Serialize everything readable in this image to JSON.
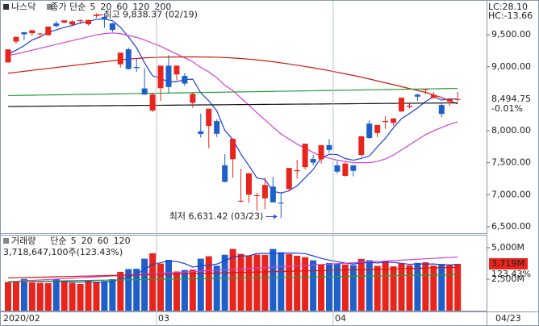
{
  "chart_data": [
    {
      "type": "candlestick",
      "title": "나스닥",
      "ma_label": "종가 단순",
      "up_color": "#e8241c",
      "down_color": "#1f5fc9",
      "open": [
        9070,
        9395,
        9541,
        9526,
        9518,
        9495,
        9680,
        9692,
        9661,
        9715,
        9666,
        9795,
        9781,
        9680,
        9039,
        9274,
        8997,
        8662,
        8316,
        8667,
        9018,
        8881,
        8858,
        8437,
        7991,
        8075,
        8151,
        7460,
        7555,
        6904,
        7000,
        6988,
        6943,
        7126,
        6875,
        7089,
        7367,
        7431,
        7558,
        7553,
        7775,
        7460,
        7294,
        7459,
        7621,
        8112,
        7964,
        8136,
        8123,
        8302,
        8374,
        8566,
        8650,
        8514,
        8402,
        8456,
        8485
      ],
      "high": [
        9275,
        9479,
        9550,
        9574,
        9535,
        9630,
        9720,
        9727,
        9728,
        9735,
        9736,
        9838.37,
        9838,
        9690,
        9219,
        9302,
        9134,
        8978,
        8596,
        9018,
        9187,
        9019,
        8902,
        8599,
        8269,
        8344,
        8180,
        7633,
        7875,
        7406,
        7339,
        7031,
        7267,
        7280,
        7041,
        7418,
        7547,
        7799,
        7623,
        7776,
        7871,
        7524,
        7516,
        7465,
        7916,
        8163,
        8091,
        8229,
        8197,
        8521,
        8442,
        8580,
        8653,
        8604,
        8423,
        8502,
        8607
      ],
      "low": [
        9060,
        9362,
        9418,
        9484,
        9455,
        9491,
        9614,
        9680,
        9635,
        9671,
        9645,
        9766,
        9608,
        9543,
        8990,
        8957,
        8922,
        8564,
        8290,
        8467,
        8583,
        8788,
        8703,
        8357,
        7896,
        7726,
        7903,
        7194,
        7264,
        6880,
        6870,
        6752,
        6771,
        6879,
        6631.42,
        7054,
        7250,
        7392,
        7456,
        7484,
        7654,
        7332,
        7280,
        7286,
        7597,
        7871,
        7897,
        8027,
        8077,
        8293,
        8347,
        8469,
        8574,
        8501,
        8209,
        8387,
        8460
      ],
      "close": [
        9273,
        9467,
        9509,
        9572,
        9520,
        9629,
        9638,
        9726,
        9711,
        9731,
        9732,
        9817,
        9750,
        9577,
        9221,
        8966,
        8980,
        8566,
        8567,
        9018,
        8684,
        9019,
        8738,
        8576,
        7950,
        8344,
        7952,
        7201,
        7875,
        6905,
        7335,
        6990,
        7151,
        6880,
        6861,
        7418,
        7384,
        7798,
        7502,
        7774,
        7700,
        7360,
        7487,
        7373,
        7913,
        7887,
        8090,
        8153,
        8192,
        8516,
        8393,
        8533,
        8650,
        8561,
        8263,
        8495,
        8494.75
      ],
      "series": [
        {
          "name": "5",
          "color": "#1c3fd8",
          "values": [
            9200,
            9260,
            9330,
            9420,
            9468,
            9540,
            9578,
            9617,
            9647,
            9687,
            9708,
            9743,
            9748,
            9721,
            9619,
            9466,
            9299,
            9062,
            8860,
            8819,
            8763,
            8767,
            8801,
            8807,
            8593,
            8469,
            8312,
            8005,
            7864,
            7635,
            7454,
            7261,
            7239,
            7052,
            7025,
            7060,
            7139,
            7264,
            7393,
            7575,
            7632,
            7627,
            7565,
            7539,
            7567,
            7604,
            7750,
            7883,
            8047,
            8188,
            8269,
            8357,
            8457,
            8531,
            8480,
            8500,
            8493
          ]
        },
        {
          "name": "20",
          "color": "#d23fd6",
          "values": [
            9180,
            9200,
            9230,
            9260,
            9290,
            9320,
            9350,
            9380,
            9410,
            9440,
            9470,
            9500,
            9520,
            9530,
            9520,
            9490,
            9460,
            9420,
            9370,
            9320,
            9260,
            9200,
            9140,
            9080,
            8990,
            8920,
            8830,
            8710,
            8630,
            8510,
            8400,
            8280,
            8170,
            8060,
            7950,
            7870,
            7790,
            7730,
            7660,
            7600,
            7570,
            7540,
            7520,
            7500,
            7500,
            7500,
            7520,
            7560,
            7620,
            7700,
            7780,
            7860,
            7940,
            8000,
            8050,
            8100,
            8140
          ]
        },
        {
          "name": "60",
          "color": "#d0190f",
          "values": [
            8900,
            8915,
            8930,
            8945,
            8960,
            8975,
            8990,
            9005,
            9020,
            9035,
            9050,
            9065,
            9080,
            9095,
            9110,
            9120,
            9130,
            9140,
            9145,
            9150,
            9152,
            9154,
            9155,
            9155,
            9154,
            9152,
            9150,
            9145,
            9138,
            9130,
            9120,
            9108,
            9095,
            9080,
            9062,
            9044,
            9025,
            9005,
            8985,
            8963,
            8940,
            8915,
            8890,
            8865,
            8838,
            8810,
            8780,
            8750,
            8720,
            8690,
            8660,
            8630,
            8600,
            8560,
            8520,
            8470,
            8420
          ]
        },
        {
          "name": "120",
          "color": "#2a9a3a",
          "values": [
            8550,
            8552,
            8554,
            8556,
            8558,
            8560,
            8562,
            8564,
            8566,
            8568,
            8570,
            8572,
            8574,
            8576,
            8578,
            8580,
            8582,
            8584,
            8586,
            8588,
            8590,
            8592,
            8594,
            8596,
            8598,
            8600,
            8602,
            8604,
            8606,
            8608,
            8610,
            8612,
            8614,
            8616,
            8618,
            8620,
            8622,
            8624,
            8626,
            8628,
            8630,
            8632,
            8634,
            8636,
            8638,
            8640,
            8642,
            8644,
            8646,
            8648,
            8650,
            8652,
            8654,
            8656,
            8658,
            8660,
            8662
          ]
        },
        {
          "name": "200",
          "color": "#111111",
          "values": [
            8380,
            8381,
            8382,
            8383,
            8384,
            8385,
            8386,
            8387,
            8388,
            8389,
            8390,
            8391,
            8392,
            8393,
            8394,
            8395,
            8396,
            8397,
            8398,
            8399,
            8400,
            8401,
            8402,
            8403,
            8404,
            8405,
            8406,
            8407,
            8408,
            8409,
            8410,
            8411,
            8412,
            8413,
            8414,
            8415,
            8416,
            8417,
            8418,
            8419,
            8420,
            8421,
            8422,
            8423,
            8424,
            8425,
            8426,
            8427,
            8428,
            8429,
            8430,
            8431,
            8432,
            8433,
            8434,
            8435,
            8436
          ]
        }
      ],
      "ylim": [
        6410,
        10020
      ],
      "yticks": [
        {
          "value": 6500,
          "label": "6,500.00"
        },
        {
          "value": 7000,
          "label": "7,000.00"
        },
        {
          "value": 7500,
          "label": "7,500.00"
        },
        {
          "value": 8000,
          "label": "8,000.00"
        },
        {
          "value": 9000,
          "label": "9,000.00"
        },
        {
          "value": 9500,
          "label": "9,500.00"
        }
      ],
      "high_annotation": "최고 9,838.37 (02/19)",
      "low_annotation": "최저 6,631.42 (03/23)",
      "lc_label": "LC:28.10",
      "hc_label": "HC:-13.66",
      "last_label": "8,494.75",
      "change_label": "-0.01%"
    },
    {
      "type": "volume",
      "title": "거래량",
      "ma_label": "단순",
      "summary": "3,718,647,100주(123.43%)",
      "categories": [
        "2020/02",
        null,
        null,
        null,
        null,
        null,
        null,
        null,
        null,
        null,
        null,
        null,
        null,
        null,
        null,
        null,
        null,
        null,
        null,
        "03",
        null,
        null,
        null,
        null,
        null,
        null,
        null,
        null,
        null,
        null,
        null,
        null,
        null,
        null,
        null,
        null,
        null,
        null,
        null,
        null,
        null,
        "04",
        null,
        null,
        null,
        null,
        null,
        null,
        null,
        null,
        null,
        null,
        null,
        null,
        null,
        null,
        null
      ],
      "x_end_label": "04/23",
      "values": [
        2280,
        2310,
        2520,
        2250,
        2210,
        2190,
        2500,
        2380,
        2210,
        2130,
        2370,
        2280,
        2350,
        2500,
        3080,
        3300,
        3330,
        4130,
        4560,
        3740,
        4030,
        3110,
        3230,
        3260,
        4130,
        4320,
        3570,
        4440,
        4900,
        4510,
        4390,
        4450,
        4430,
        4900,
        4640,
        4490,
        4360,
        4250,
        4000,
        3690,
        3780,
        3750,
        3670,
        3620,
        4110,
        4000,
        3560,
        3960,
        3520,
        3740,
        3610,
        3790,
        3840,
        3580,
        3710,
        3650,
        3719
      ],
      "series": [
        {
          "name": "5",
          "color": "#1c3fd8",
          "values": [
            2300,
            2300,
            2350,
            2340,
            2310,
            2340,
            2330,
            2310,
            2280,
            2280,
            2320,
            2270,
            2270,
            2330,
            2520,
            2700,
            2910,
            3270,
            3680,
            3810,
            3960,
            3910,
            3740,
            3470,
            3550,
            3610,
            3700,
            3940,
            4270,
            4350,
            4360,
            4540,
            4540,
            4540,
            4560,
            4580,
            4570,
            4530,
            4350,
            4160,
            4010,
            3890,
            3780,
            3700,
            3790,
            3830,
            3790,
            3850,
            3830,
            3760,
            3680,
            3720,
            3700,
            3710,
            3650,
            3640,
            3660
          ]
        },
        {
          "name": "20",
          "color": "#d23fd6",
          "values": [
            2300,
            2335,
            2370,
            2405,
            2440,
            2475,
            2510,
            2545,
            2580,
            2615,
            2650,
            2685,
            2720,
            2755,
            2790,
            2825,
            2860,
            2895,
            2930,
            2965,
            3000,
            3035,
            3070,
            3105,
            3140,
            3175,
            3210,
            3245,
            3280,
            3315,
            3350,
            3385,
            3420,
            3455,
            3490,
            3525,
            3560,
            3595,
            3630,
            3665,
            3700,
            3735,
            3770,
            3805,
            3840,
            3875,
            3910,
            3945,
            3980,
            4015,
            4050,
            4085,
            4120,
            4155,
            4190,
            4225,
            4260
          ]
        },
        {
          "name": "60",
          "color": "#d0190f",
          "values": [
            2600,
            2615,
            2630,
            2645,
            2660,
            2675,
            2690,
            2705,
            2720,
            2735,
            2750,
            2765,
            2780,
            2795,
            2810,
            2825,
            2840,
            2855,
            2870,
            2885,
            2900,
            2915,
            2930,
            2945,
            2960,
            2975,
            2990,
            3005,
            3020,
            3035,
            3050,
            3065,
            3080,
            3095,
            3110,
            3125,
            3140,
            3155,
            3170,
            3185,
            3200,
            3215,
            3230,
            3245,
            3260,
            3275,
            3290,
            3305,
            3320,
            3335,
            3350,
            3365,
            3380,
            3395,
            3410,
            3425,
            3440
          ]
        },
        {
          "name": "120",
          "color": "#2a9a3a",
          "values": [
            2300,
            2310,
            2320,
            2330,
            2340,
            2350,
            2360,
            2370,
            2380,
            2390,
            2400,
            2410,
            2420,
            2430,
            2440,
            2450,
            2460,
            2470,
            2480,
            2490,
            2500,
            2510,
            2520,
            2530,
            2540,
            2550,
            2560,
            2570,
            2580,
            2590,
            2600,
            2610,
            2620,
            2630,
            2640,
            2650,
            2660,
            2670,
            2680,
            2690,
            2700,
            2710,
            2720,
            2730,
            2740,
            2750,
            2760,
            2770,
            2780,
            2790,
            2800,
            2810,
            2820,
            2830,
            2840,
            2850,
            2860
          ]
        }
      ],
      "ylim": [
        0,
        5960
      ],
      "yticks": [
        {
          "value": 2500,
          "label": "2,500M"
        },
        {
          "value": 5000,
          "label": "5,000M"
        }
      ],
      "last_label": "3,719M",
      "ratio_label": "123.43%"
    }
  ]
}
